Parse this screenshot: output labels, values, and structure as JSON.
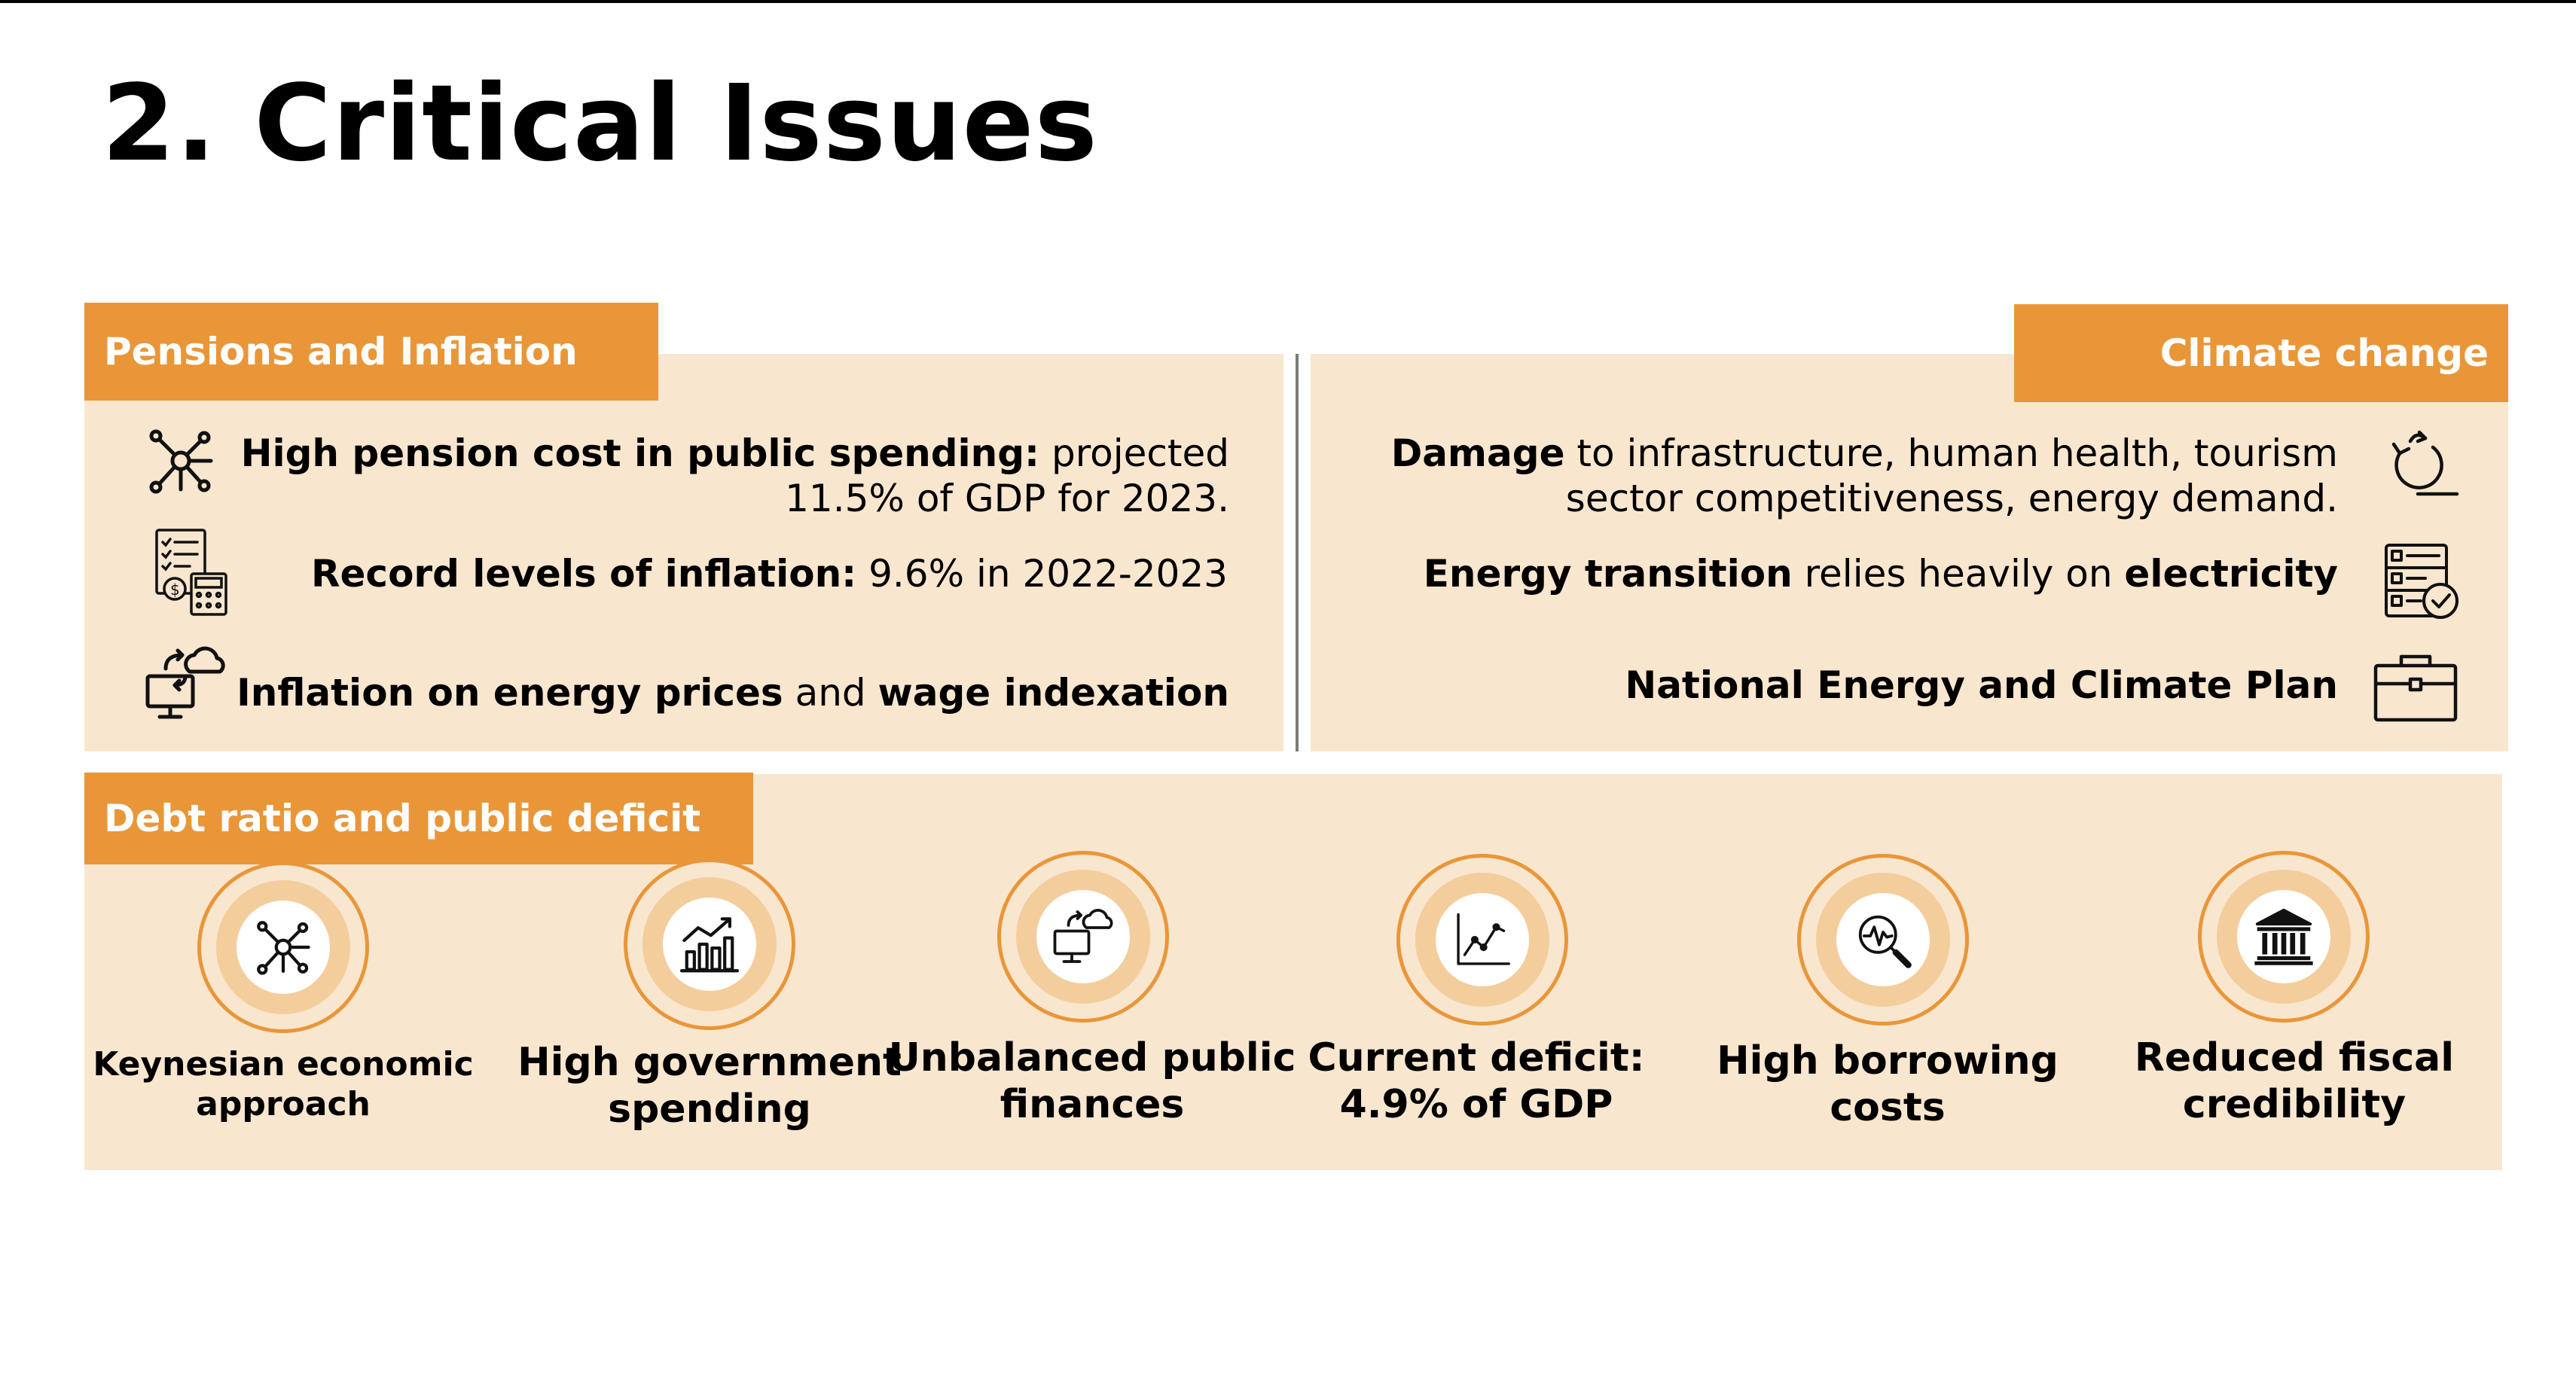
{
  "title": "2. Critical Issues",
  "colors": {
    "accent": "#e99639",
    "panel": "#f8e6cf",
    "ring": "#f4cd9c"
  },
  "pensions": {
    "tab": "Pensions and Inflation",
    "items": [
      {
        "icon": "network-icon",
        "bold": "High pension cost in public spending:",
        "line1_rest": " projected",
        "line2": "11.5% of GDP for 2023."
      },
      {
        "icon": "calculator-document-icon",
        "bold": "Record levels of inflation:",
        "rest": " 9.6% in 2022-2023"
      },
      {
        "icon": "cloud-monitor-icon",
        "bold1": "Inflation on energy prices",
        "mid": " and ",
        "bold2": "wage indexation"
      }
    ]
  },
  "climate": {
    "tab": "Climate change",
    "items": [
      {
        "icon": "cycle-arrow-icon",
        "bold": "Damage",
        "line1_rest": " to infrastructure, human health, tourism",
        "line2": "sector competitiveness, energy demand."
      },
      {
        "icon": "checklist-icon",
        "bold1": "Energy transition",
        "mid": " relies heavily on ",
        "bold2": "electricity"
      },
      {
        "icon": "briefcase-icon",
        "bold": "National Energy and Climate Plan"
      }
    ]
  },
  "debt": {
    "tab": "Debt ratio and public deficit",
    "items": [
      {
        "icon": "network-icon",
        "line1": "Keynesian economic",
        "line2": "approach"
      },
      {
        "icon": "bar-chart-growth-icon",
        "line1": "High government",
        "line2": "spending"
      },
      {
        "icon": "cloud-monitor-icon",
        "line1": "Unbalanced public",
        "line2": "finances"
      },
      {
        "icon": "line-chart-icon",
        "line1": "Current deficit:",
        "line2": "4.9% of GDP"
      },
      {
        "icon": "magnifier-pulse-icon",
        "line1": "High borrowing",
        "line2": "costs"
      },
      {
        "icon": "bank-building-icon",
        "line1": "Reduced fiscal",
        "line2": "credibility"
      }
    ]
  }
}
